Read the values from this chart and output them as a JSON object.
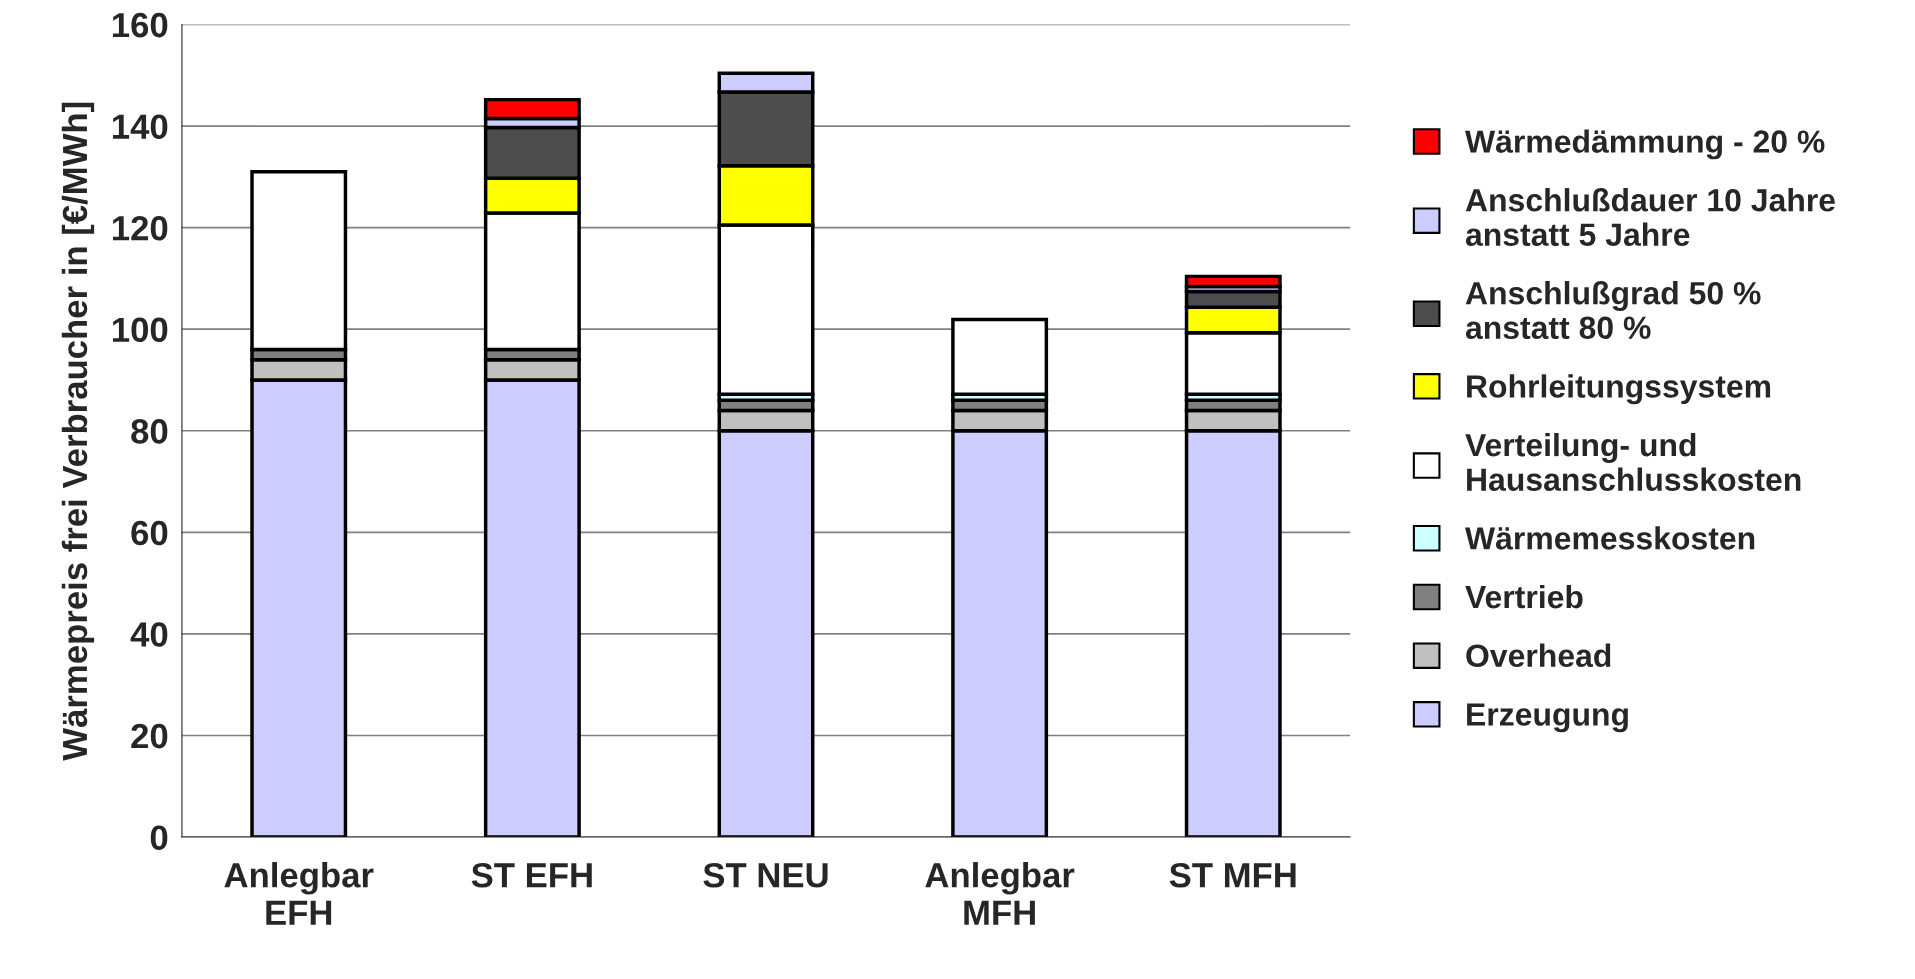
{
  "chart_data": {
    "type": "bar",
    "stacked": true,
    "ylabel": "Wärmepreis frei Verbraucher in [€/MWh]",
    "categories": [
      "Anlegbar EFH",
      "ST EFH",
      "ST NEU",
      "Anlegbar MFH",
      "ST MFH"
    ],
    "ylim": [
      0,
      160
    ],
    "yticks": [
      0,
      20,
      40,
      60,
      80,
      100,
      120,
      140,
      160
    ],
    "grid": "y",
    "legend": "right",
    "series": [
      {
        "name": "Erzeugung",
        "color": "#ccccff",
        "values": [
          90,
          90,
          80,
          80,
          80
        ]
      },
      {
        "name": "Overhead",
        "color": "#c0c0c0",
        "values": [
          4,
          4,
          4,
          4,
          4
        ]
      },
      {
        "name": "Vertrieb",
        "color": "#808080",
        "values": [
          2,
          2,
          2,
          2,
          2
        ]
      },
      {
        "name": "Wärmemesskosten",
        "color": "#ccffff",
        "values": [
          null,
          null,
          1.2,
          1.2,
          1.2
        ]
      },
      {
        "name": "Verteilung- und Hausanschlusskosten",
        "color": "#ffffff",
        "values": [
          35,
          26.9,
          33.3,
          14.7,
          12.1
        ]
      },
      {
        "name": "Rohrleitungssystem",
        "color": "#ffff00",
        "values": [
          0,
          6.8,
          11.7,
          0,
          5
        ]
      },
      {
        "name": "Anschlußgrad 50 % anstatt 80 %",
        "color": "#4d4d4d",
        "values": [
          0,
          10,
          14.5,
          0,
          3.1
        ]
      },
      {
        "name": "Anschlußdauer 10 Jahre anstatt 5 Jahre",
        "color": "#ccccff",
        "values": [
          0,
          1.8,
          3.7,
          0,
          1
        ]
      },
      {
        "name": "Wärmedämmung - 20 %",
        "color": "#ff0000",
        "values": [
          0,
          3.7,
          0,
          0,
          2
        ]
      }
    ]
  }
}
